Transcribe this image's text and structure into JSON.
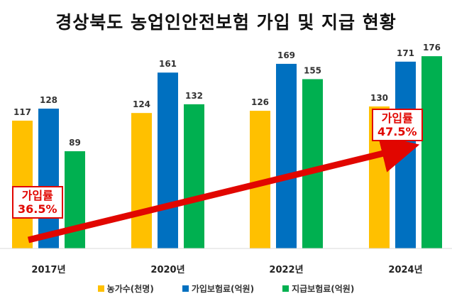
{
  "chart_data": {
    "type": "bar",
    "title": "경상북도 농업인안전보험 가입 및 지급 현황",
    "categories": [
      "2017년",
      "2020년",
      "2022년",
      "2024년"
    ],
    "series": [
      {
        "name": "농가수(천명)",
        "color": "#FFC000",
        "values": [
          117,
          124,
          126,
          130
        ]
      },
      {
        "name": "가입보험료(억원)",
        "color": "#0070C0",
        "values": [
          128,
          161,
          169,
          171
        ]
      },
      {
        "name": "지급보험료(억원)",
        "color": "#00B050",
        "values": [
          89,
          132,
          155,
          176
        ]
      }
    ],
    "ylim": [
      0,
      180
    ],
    "grid": false,
    "legend_position": "bottom",
    "annotations": [
      {
        "label": "가입률",
        "value": "36.5%",
        "category": "2017년"
      },
      {
        "label": "가입률",
        "value": "47.5%",
        "category": "2024년"
      }
    ],
    "arrow_color": "#E10600"
  }
}
